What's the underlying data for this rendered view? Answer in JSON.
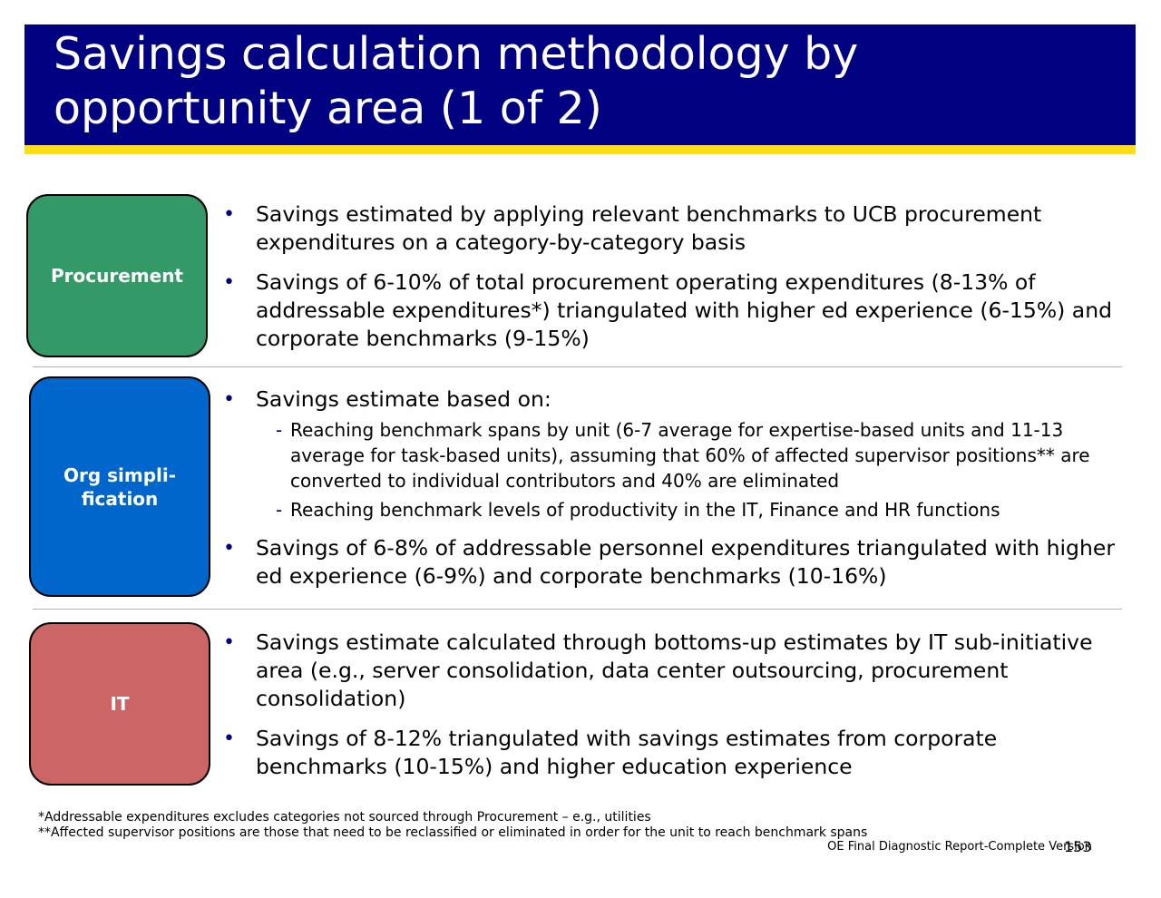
{
  "title": "Savings calculation methodology by opportunity area (1 of 2)",
  "colors": {
    "title_bar": "#000080",
    "accent": "#ffde17",
    "procurement": "#339966",
    "org": "#0066cc",
    "it": "#cc6666"
  },
  "sections": [
    {
      "label": "Procurement",
      "bullets": [
        "Savings estimated by applying relevant benchmarks to UCB procurement expenditures on a category-by-category basis",
        "Savings of 6-10% of total procurement operating expenditures (8-13% of addressable expenditures*) triangulated with higher ed experience (6-15%) and corporate benchmarks (9-15%)"
      ]
    },
    {
      "label": "Org simpli-fication",
      "bullet1": "Savings estimate based on:",
      "sub_bullets": [
        "Reaching benchmark spans by unit (6-7 average for expertise-based units and 11-13 average for task-based units), assuming that 60% of affected supervisor positions** are converted to individual contributors and 40% are eliminated",
        "Reaching benchmark levels of productivity in the IT, Finance and HR functions"
      ],
      "bullet2": "Savings of 6-8% of addressable personnel expenditures triangulated with higher ed experience (6-9%) and corporate benchmarks (10-16%)"
    },
    {
      "label": "IT",
      "bullets": [
        "Savings estimate calculated through bottoms-up estimates by IT sub-initiative area (e.g., server consolidation, data center outsourcing, procurement consolidation)",
        "Savings of 8-12% triangulated with savings estimates from corporate benchmarks (10-15%) and higher education experience"
      ]
    }
  ],
  "footnotes": [
    "*Addressable expenditures excludes categories not sourced through Procurement – e.g., utilities",
    "**Affected supervisor positions are those that need to be reclassified or eliminated in order for the unit to reach benchmark spans"
  ],
  "footer": "OE Final Diagnostic Report-Complete Version",
  "page_number": "153"
}
